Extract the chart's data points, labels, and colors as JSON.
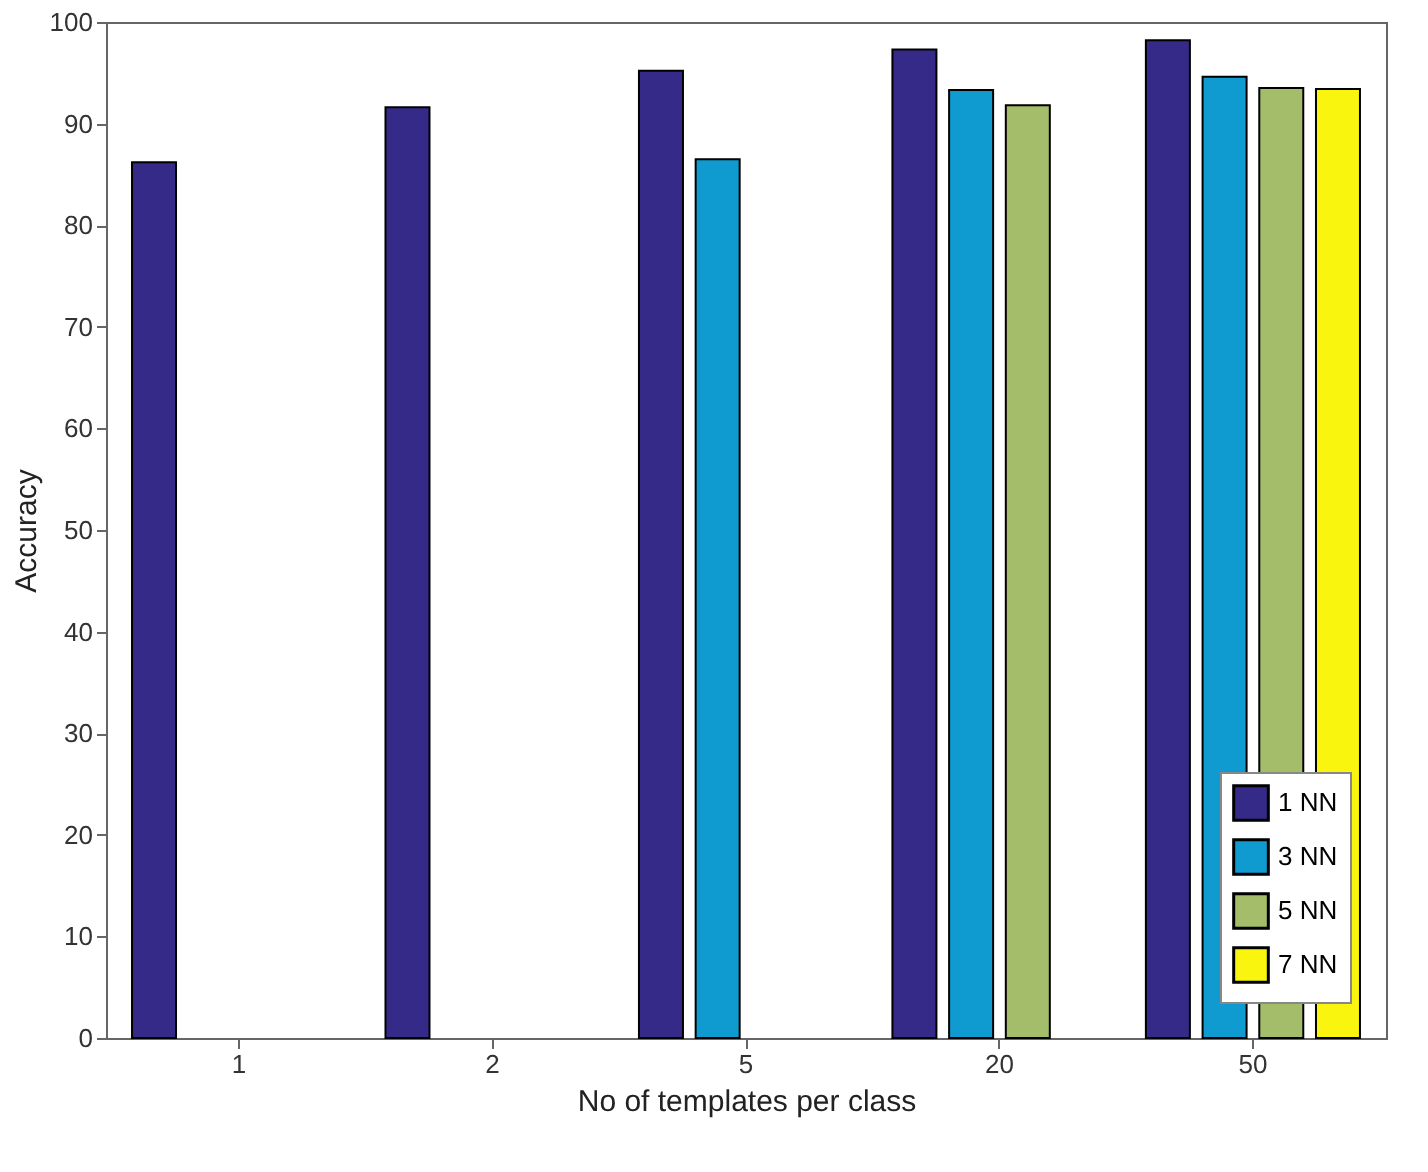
{
  "chart_data": {
    "type": "bar",
    "xlabel": "No of templates per class",
    "ylabel": "Accuracy",
    "categories": [
      "1",
      "2",
      "5",
      "20",
      "50"
    ],
    "series": [
      {
        "name": "1 NN",
        "color": "#352a87",
        "values": [
          86.2,
          91.6,
          95.2,
          97.3,
          98.2
        ]
      },
      {
        "name": "3 NN",
        "color": "#0f9bd0",
        "values": [
          null,
          null,
          86.5,
          93.3,
          94.6
        ]
      },
      {
        "name": "5 NN",
        "color": "#a3bd6a",
        "values": [
          null,
          null,
          null,
          91.8,
          93.5
        ]
      },
      {
        "name": "7 NN",
        "color": "#f9f50e",
        "values": [
          null,
          null,
          null,
          null,
          93.4
        ]
      }
    ],
    "ylim": [
      0,
      100
    ],
    "yticks": [
      0,
      10,
      20,
      30,
      40,
      50,
      60,
      70,
      80,
      90,
      100
    ],
    "grid": false,
    "legend": "bottom right"
  }
}
